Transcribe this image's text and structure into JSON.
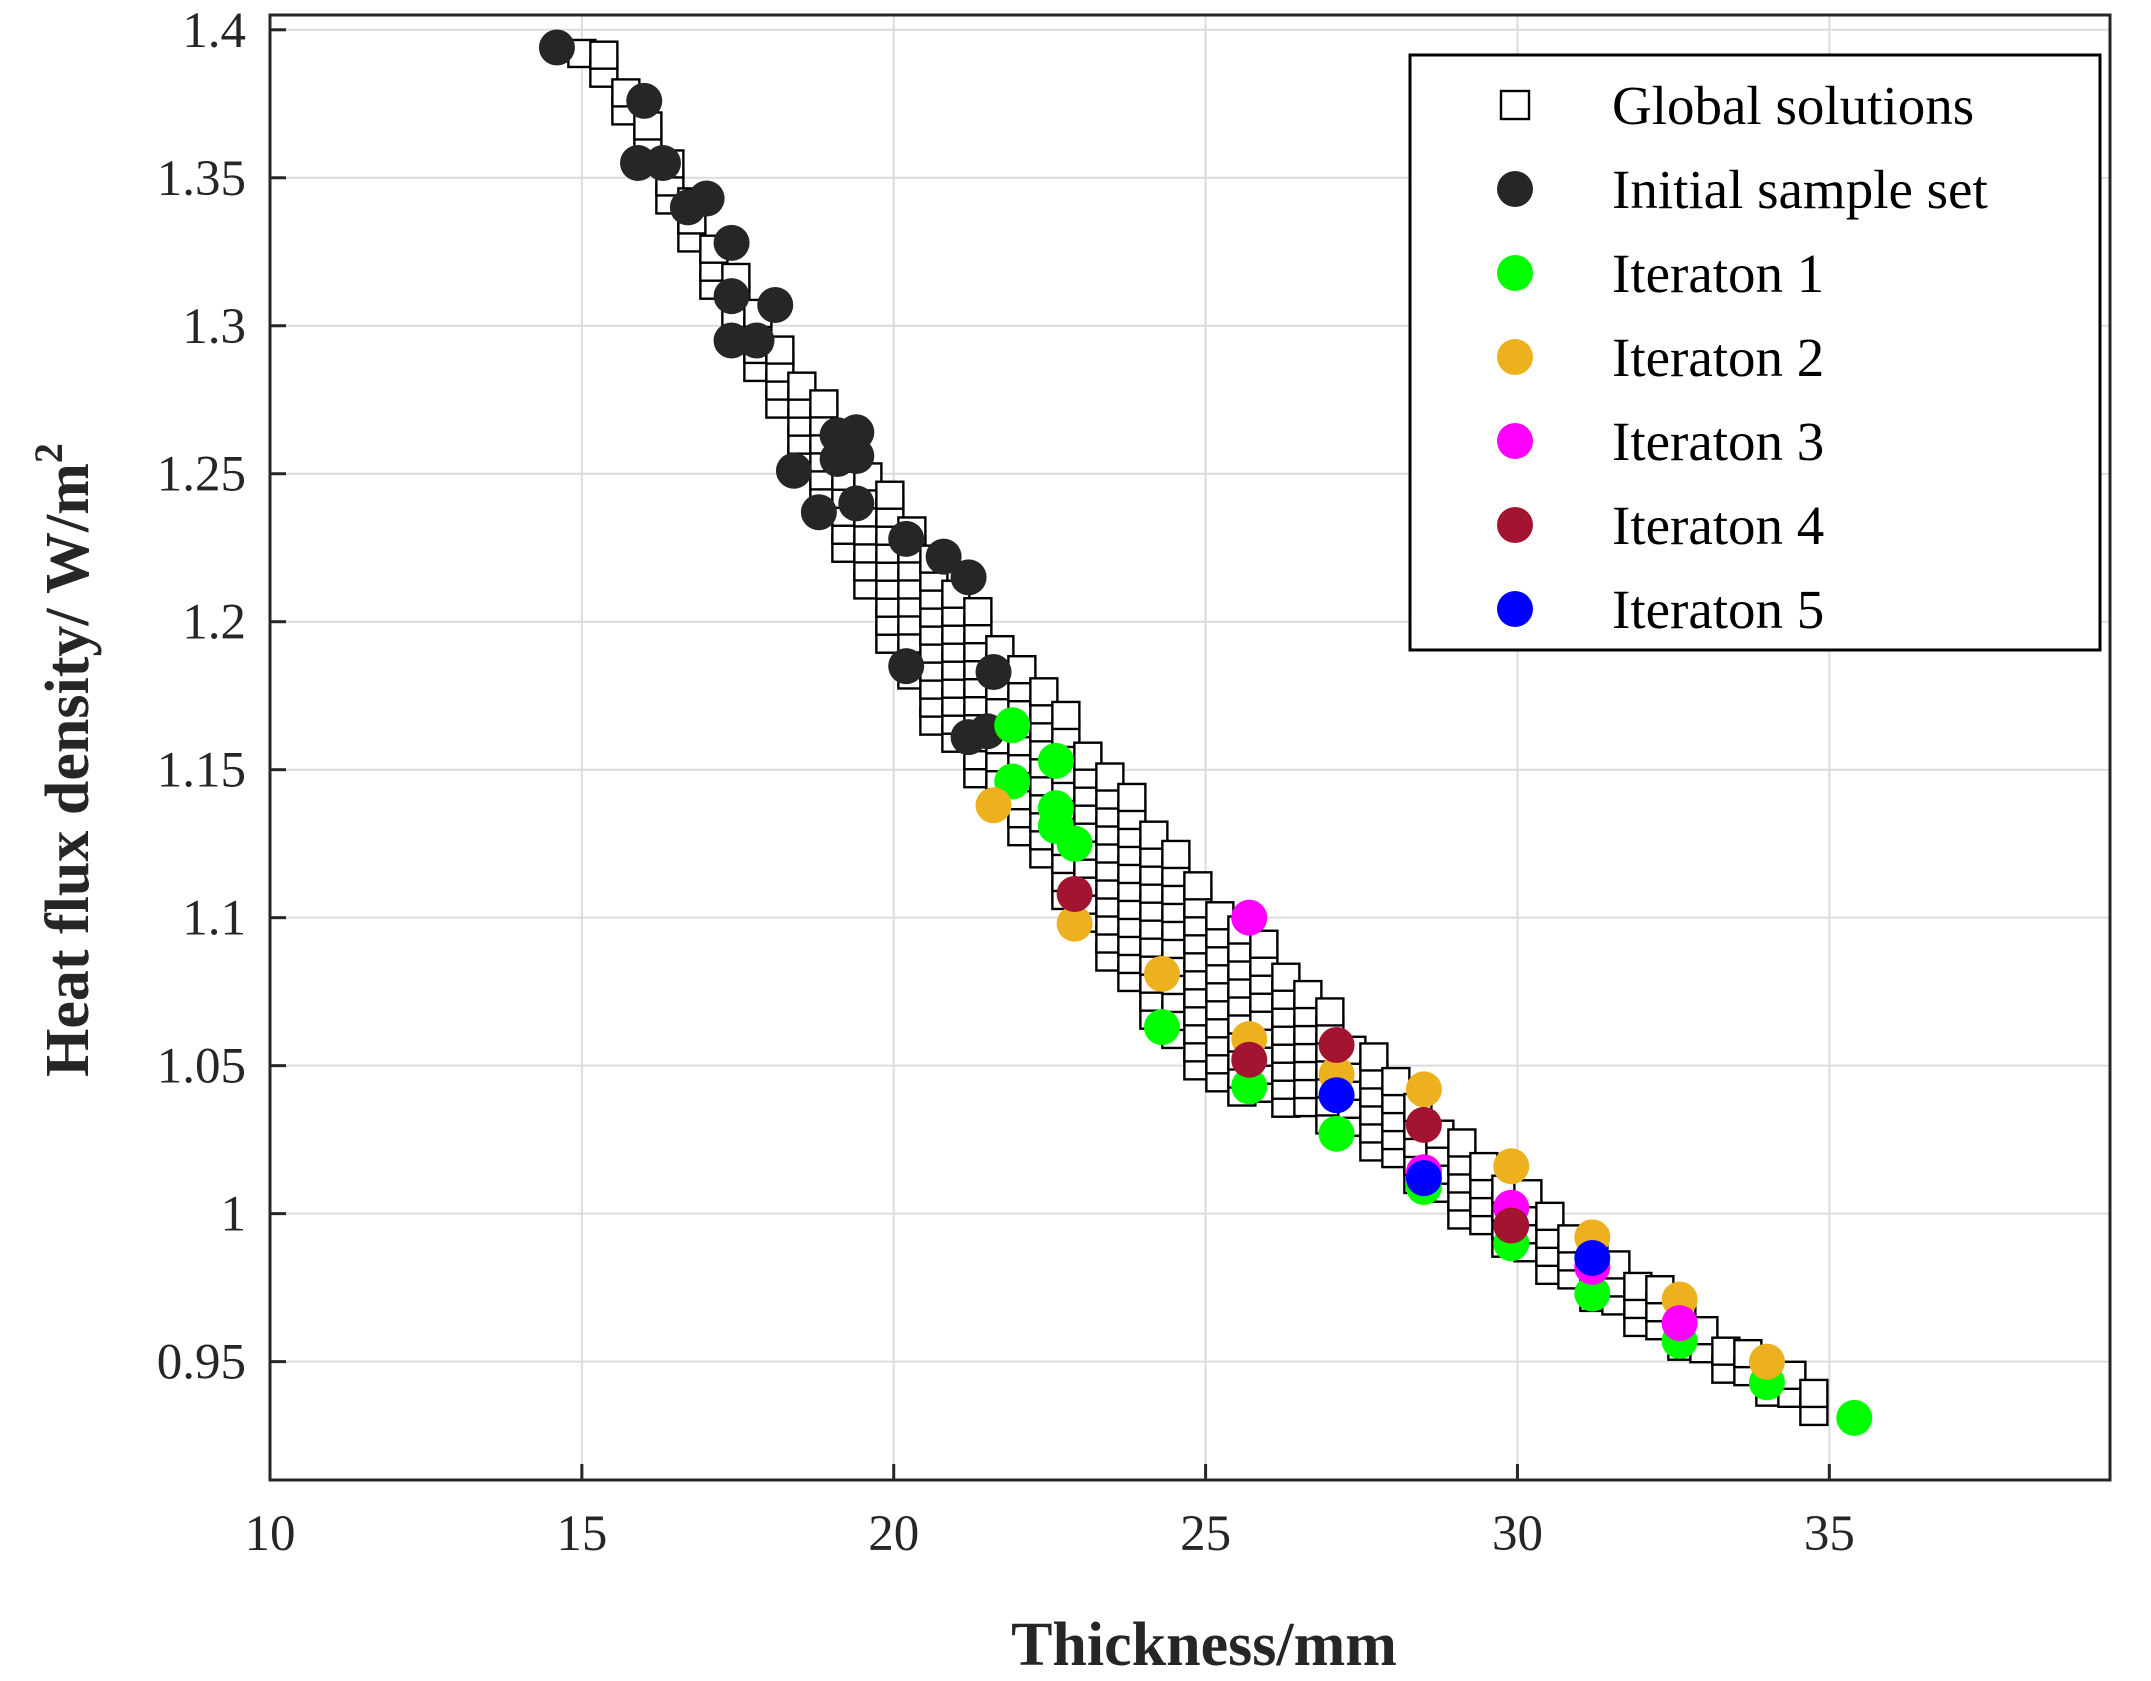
{
  "chart_data": {
    "type": "scatter",
    "title": "",
    "xlabel": "Thickness/mm",
    "ylabel": "Heat flux density/ W/m",
    "ylabel_superscript": "2",
    "xlim": [
      10,
      39.5
    ],
    "ylim": [
      0.91,
      1.405
    ],
    "xticks": [
      "10",
      "15",
      "20",
      "25",
      "30",
      "35"
    ],
    "yticks": [
      "0.95",
      "1",
      "1.05",
      "1.1",
      "1.15",
      "1.2",
      "1.25",
      "1.3",
      "1.35",
      "1.4"
    ],
    "grid": true,
    "legend_position": "top-right",
    "series": [
      {
        "name": "Global solutions",
        "marker": "square",
        "color": "#000000",
        "band_upper": [
          [
            15.3,
            1.395
          ],
          [
            16.3,
            1.36
          ],
          [
            17.3,
            1.325
          ],
          [
            18.3,
            1.29
          ],
          [
            19.3,
            1.262
          ],
          [
            20.3,
            1.235
          ],
          [
            21.3,
            1.205
          ],
          [
            22.3,
            1.18
          ],
          [
            23.3,
            1.155
          ],
          [
            24.3,
            1.128
          ],
          [
            25.3,
            1.105
          ],
          [
            26.3,
            1.085
          ],
          [
            27.3,
            1.062
          ],
          [
            28.3,
            1.042
          ],
          [
            29.3,
            1.022
          ],
          [
            30.3,
            1.005
          ],
          [
            31.3,
            0.99
          ],
          [
            32.3,
            0.975
          ],
          [
            33.3,
            0.96
          ],
          [
            34.3,
            0.947
          ],
          [
            35.0,
            0.936
          ]
        ],
        "band_lower": [
          [
            15.0,
            1.392
          ],
          [
            15.8,
            1.37
          ],
          [
            16.8,
            1.325
          ],
          [
            17.5,
            1.3
          ],
          [
            18.3,
            1.265
          ],
          [
            19.0,
            1.235
          ],
          [
            19.8,
            1.2
          ],
          [
            20.5,
            1.17
          ],
          [
            21.3,
            1.15
          ],
          [
            22.2,
            1.125
          ],
          [
            23.0,
            1.1
          ],
          [
            23.7,
            1.08
          ],
          [
            24.5,
            1.058
          ],
          [
            25.2,
            1.043
          ],
          [
            26.2,
            1.038
          ],
          [
            27.2,
            1.03
          ],
          [
            28.2,
            1.015
          ],
          [
            29.2,
            0.998
          ],
          [
            30.2,
            0.985
          ],
          [
            31.2,
            0.972
          ],
          [
            32.2,
            0.96
          ],
          [
            33.2,
            0.949
          ],
          [
            34.2,
            0.938
          ],
          [
            35.0,
            0.931
          ]
        ]
      },
      {
        "name": "Initial sample set",
        "marker": "circle",
        "color": "#262626",
        "points": [
          [
            14.6,
            1.394
          ],
          [
            16.0,
            1.376
          ],
          [
            15.9,
            1.355
          ],
          [
            16.3,
            1.355
          ],
          [
            16.7,
            1.34
          ],
          [
            17.0,
            1.343
          ],
          [
            17.4,
            1.328
          ],
          [
            17.4,
            1.31
          ],
          [
            17.4,
            1.295
          ],
          [
            17.8,
            1.295
          ],
          [
            18.1,
            1.307
          ],
          [
            18.4,
            1.251
          ],
          [
            18.8,
            1.237
          ],
          [
            19.1,
            1.263
          ],
          [
            19.1,
            1.255
          ],
          [
            19.4,
            1.264
          ],
          [
            19.4,
            1.256
          ],
          [
            19.4,
            1.24
          ],
          [
            20.2,
            1.228
          ],
          [
            20.8,
            1.222
          ],
          [
            21.2,
            1.215
          ],
          [
            20.2,
            1.185
          ],
          [
            21.6,
            1.183
          ],
          [
            21.2,
            1.161
          ],
          [
            21.5,
            1.163
          ]
        ]
      },
      {
        "name": "Iteraton 1",
        "marker": "circle",
        "color": "#00ff00",
        "points": [
          [
            21.9,
            1.165
          ],
          [
            22.6,
            1.153
          ],
          [
            21.9,
            1.146
          ],
          [
            22.6,
            1.137
          ],
          [
            22.6,
            1.131
          ],
          [
            22.9,
            1.125
          ],
          [
            24.3,
            1.063
          ],
          [
            25.7,
            1.043
          ],
          [
            27.1,
            1.027
          ],
          [
            28.5,
            1.009
          ],
          [
            29.9,
            0.99
          ],
          [
            31.2,
            0.973
          ],
          [
            32.6,
            0.957
          ],
          [
            34.0,
            0.943
          ],
          [
            35.4,
            0.931
          ]
        ]
      },
      {
        "name": "Iteraton 2",
        "marker": "circle",
        "color": "#edb120",
        "points": [
          [
            21.6,
            1.138
          ],
          [
            22.9,
            1.098
          ],
          [
            24.3,
            1.081
          ],
          [
            25.7,
            1.059
          ],
          [
            27.1,
            1.047
          ],
          [
            28.5,
            1.042
          ],
          [
            29.9,
            1.016
          ],
          [
            31.2,
            0.992
          ],
          [
            32.6,
            0.971
          ],
          [
            34.0,
            0.95
          ]
        ]
      },
      {
        "name": "Iteraton 3",
        "marker": "circle",
        "color": "#ff00ff",
        "points": [
          [
            25.7,
            1.1
          ],
          [
            28.5,
            1.014
          ],
          [
            29.9,
            1.002
          ],
          [
            31.2,
            0.982
          ],
          [
            32.6,
            0.963
          ]
        ]
      },
      {
        "name": "Iteraton 4",
        "marker": "circle",
        "color": "#a2142f",
        "points": [
          [
            22.9,
            1.108
          ],
          [
            25.7,
            1.052
          ],
          [
            27.1,
            1.057
          ],
          [
            28.5,
            1.03
          ],
          [
            29.9,
            0.996
          ]
        ]
      },
      {
        "name": "Iteraton 5",
        "marker": "circle",
        "color": "#0000ff",
        "points": [
          [
            27.1,
            1.04
          ],
          [
            28.5,
            1.012
          ],
          [
            31.2,
            0.985
          ]
        ]
      }
    ]
  }
}
